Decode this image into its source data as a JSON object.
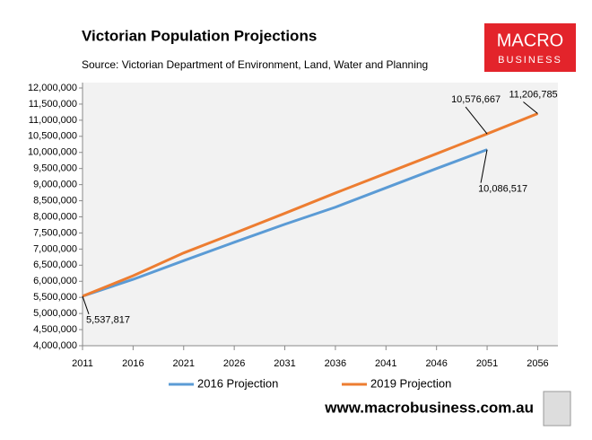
{
  "chart_data": {
    "type": "line",
    "title": "Victorian Population Projections",
    "subtitle": "Source: Victorian Department of Environment, Land, Water and Planning",
    "logo": [
      "MACRO",
      "BUSINESS"
    ],
    "footer": "www.macrobusiness.com.au",
    "x": [
      2011,
      2016,
      2021,
      2026,
      2031,
      2036,
      2041,
      2046,
      2051,
      2056
    ],
    "xlim": [
      2011,
      2058
    ],
    "xticks": [
      2011,
      2016,
      2021,
      2026,
      2031,
      2036,
      2041,
      2046,
      2051,
      2056
    ],
    "ylim": [
      4000000,
      12000000
    ],
    "yticks": [
      {
        "value": 4000000,
        "label": "4,000,000"
      },
      {
        "value": 4500000,
        "label": "4,500,000"
      },
      {
        "value": 5000000,
        "label": "5,000,000"
      },
      {
        "value": 5500000,
        "label": "5,500,000"
      },
      {
        "value": 6000000,
        "label": "6,000,000"
      },
      {
        "value": 6500000,
        "label": "6,500,000"
      },
      {
        "value": 7000000,
        "label": "7,000,000"
      },
      {
        "value": 7500000,
        "label": "7,500,000"
      },
      {
        "value": 8000000,
        "label": "8,000,000"
      },
      {
        "value": 8500000,
        "label": "8,500,000"
      },
      {
        "value": 9000000,
        "label": "9,000,000"
      },
      {
        "value": 9500000,
        "label": "9,500,000"
      },
      {
        "value": 10000000,
        "label": "10,000,000"
      },
      {
        "value": 10500000,
        "label": "10,500,000"
      },
      {
        "value": 11000000,
        "label": "11,000,000"
      },
      {
        "value": 11500000,
        "label": "11,500,000"
      },
      {
        "value": 12000000,
        "label": "12,000,000"
      }
    ],
    "series": [
      {
        "name": "2016 Projection",
        "color": "#5b9bd5",
        "values": [
          5537817,
          6060000,
          6640000,
          7210000,
          7770000,
          8300000,
          8900000,
          9500000,
          10086517,
          null
        ],
        "value_labels": [
          "5,537,817",
          null,
          null,
          null,
          null,
          null,
          null,
          null,
          "10,086,517",
          null
        ]
      },
      {
        "name": "2019 Projection",
        "color": "#ed7d31",
        "values": [
          5537817,
          6170000,
          6880000,
          7490000,
          8110000,
          8740000,
          9350000,
          9960000,
          10576667,
          11206785
        ],
        "value_labels": [
          null,
          null,
          null,
          null,
          null,
          null,
          null,
          null,
          "10,576,667",
          "11,206,785"
        ]
      }
    ]
  }
}
